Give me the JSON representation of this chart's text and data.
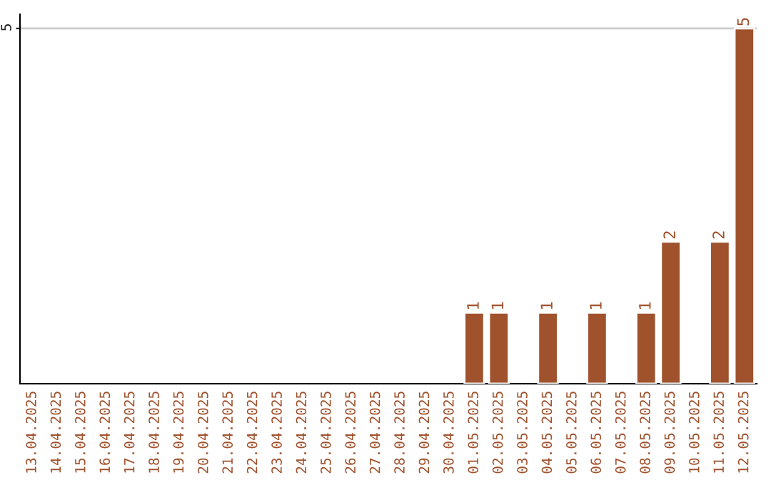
{
  "chart_data": {
    "type": "bar",
    "categories": [
      "13.04.2025",
      "14.04.2025",
      "15.04.2025",
      "16.04.2025",
      "17.04.2025",
      "18.04.2025",
      "19.04.2025",
      "20.04.2025",
      "21.04.2025",
      "22.04.2025",
      "23.04.2025",
      "24.04.2025",
      "25.04.2025",
      "26.04.2025",
      "27.04.2025",
      "28.04.2025",
      "29.04.2025",
      "30.04.2025",
      "01.05.2025",
      "02.05.2025",
      "03.05.2025",
      "04.05.2025",
      "05.05.2025",
      "06.05.2025",
      "07.05.2025",
      "08.05.2025",
      "09.05.2025",
      "10.05.2025",
      "11.05.2025",
      "12.05.2025"
    ],
    "values": [
      null,
      null,
      null,
      null,
      null,
      null,
      null,
      null,
      null,
      null,
      null,
      null,
      null,
      null,
      null,
      null,
      null,
      null,
      1,
      1,
      null,
      1,
      null,
      1,
      null,
      1,
      2,
      null,
      2,
      5
    ],
    "value_labels": [
      null,
      null,
      null,
      null,
      null,
      null,
      null,
      null,
      null,
      null,
      null,
      null,
      null,
      null,
      null,
      null,
      null,
      null,
      "1",
      "1",
      null,
      "1",
      null,
      "1",
      null,
      "1",
      "2",
      null,
      "2",
      "5"
    ],
    "color": "#a0522d",
    "ylim": [
      0,
      5.2
    ],
    "yticks": [
      5
    ],
    "grid": "y"
  }
}
